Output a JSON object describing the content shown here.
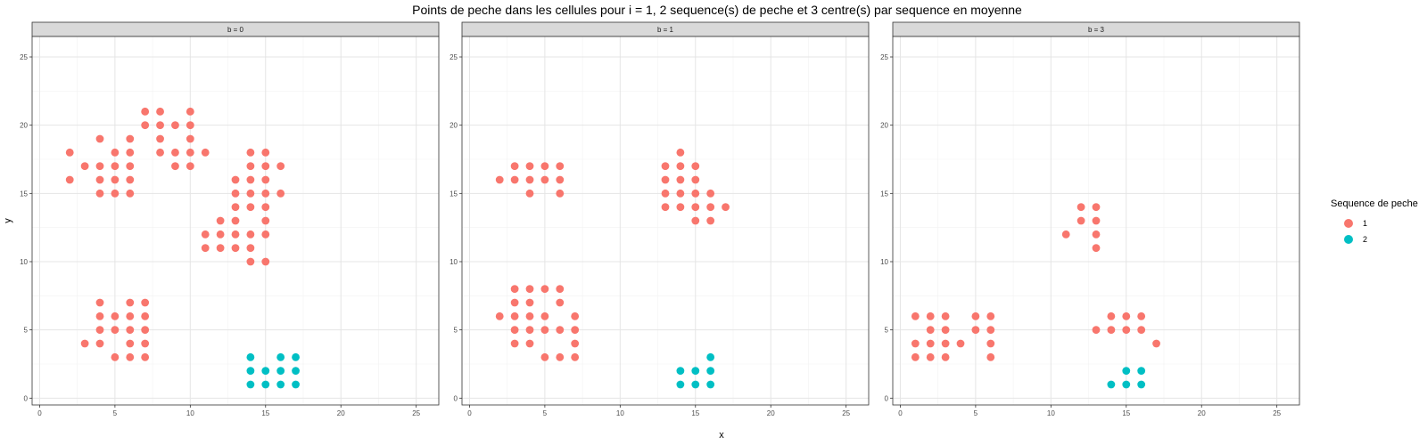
{
  "chart_data": {
    "type": "scatter",
    "title": "Points de peche dans les cellules pour i = 1, 2 sequence(s) de peche et 3 centre(s) par sequence en moyenne",
    "xlabel": "x",
    "ylabel": "y",
    "xlim": [
      -0.5,
      26.5
    ],
    "ylim": [
      -0.5,
      26.5
    ],
    "ticks": [
      "0",
      "5",
      "10",
      "15",
      "20",
      "25"
    ],
    "grid": true,
    "legend": {
      "title": "Sequence de peche",
      "placement": "right",
      "entries": [
        {
          "label": "1",
          "color": "#F8766D"
        },
        {
          "label": "2",
          "color": "#00BFC4"
        }
      ]
    },
    "panels": [
      {
        "strip": "b = 0",
        "series": [
          {
            "key": "1",
            "points": [
              [
                2,
                18
              ],
              [
                2,
                16
              ],
              [
                3,
                17
              ],
              [
                4,
                19
              ],
              [
                4,
                17
              ],
              [
                4,
                16
              ],
              [
                4,
                15
              ],
              [
                5,
                18
              ],
              [
                5,
                17
              ],
              [
                5,
                16
              ],
              [
                5,
                15
              ],
              [
                6,
                19
              ],
              [
                6,
                18
              ],
              [
                6,
                17
              ],
              [
                6,
                16
              ],
              [
                6,
                15
              ],
              [
                7,
                21
              ],
              [
                7,
                20
              ],
              [
                8,
                21
              ],
              [
                8,
                20
              ],
              [
                8,
                19
              ],
              [
                8,
                18
              ],
              [
                9,
                20
              ],
              [
                9,
                18
              ],
              [
                9,
                17
              ],
              [
                10,
                21
              ],
              [
                10,
                20
              ],
              [
                10,
                19
              ],
              [
                10,
                18
              ],
              [
                10,
                17
              ],
              [
                11,
                18
              ],
              [
                11,
                12
              ],
              [
                11,
                11
              ],
              [
                12,
                13
              ],
              [
                12,
                12
              ],
              [
                12,
                11
              ],
              [
                13,
                16
              ],
              [
                13,
                15
              ],
              [
                13,
                14
              ],
              [
                13,
                13
              ],
              [
                13,
                12
              ],
              [
                13,
                11
              ],
              [
                14,
                18
              ],
              [
                14,
                17
              ],
              [
                14,
                16
              ],
              [
                14,
                15
              ],
              [
                14,
                14
              ],
              [
                14,
                12
              ],
              [
                14,
                11
              ],
              [
                14,
                10
              ],
              [
                15,
                18
              ],
              [
                15,
                17
              ],
              [
                15,
                16
              ],
              [
                15,
                15
              ],
              [
                15,
                14
              ],
              [
                15,
                13
              ],
              [
                15,
                12
              ],
              [
                15,
                10
              ],
              [
                16,
                17
              ],
              [
                16,
                15
              ],
              [
                3,
                4
              ],
              [
                4,
                7
              ],
              [
                4,
                6
              ],
              [
                4,
                5
              ],
              [
                4,
                4
              ],
              [
                5,
                6
              ],
              [
                5,
                5
              ],
              [
                5,
                3
              ],
              [
                6,
                7
              ],
              [
                6,
                6
              ],
              [
                6,
                5
              ],
              [
                6,
                4
              ],
              [
                6,
                3
              ],
              [
                7,
                7
              ],
              [
                7,
                6
              ],
              [
                7,
                5
              ],
              [
                7,
                4
              ],
              [
                7,
                3
              ]
            ]
          },
          {
            "key": "2",
            "points": [
              [
                14,
                3
              ],
              [
                14,
                2
              ],
              [
                14,
                1
              ],
              [
                15,
                2
              ],
              [
                15,
                1
              ],
              [
                16,
                3
              ],
              [
                16,
                2
              ],
              [
                16,
                1
              ],
              [
                17,
                3
              ],
              [
                17,
                2
              ],
              [
                17,
                1
              ]
            ]
          }
        ]
      },
      {
        "strip": "b = 1",
        "series": [
          {
            "key": "1",
            "points": [
              [
                2,
                16
              ],
              [
                3,
                17
              ],
              [
                3,
                16
              ],
              [
                4,
                17
              ],
              [
                4,
                16
              ],
              [
                4,
                15
              ],
              [
                5,
                17
              ],
              [
                5,
                16
              ],
              [
                6,
                17
              ],
              [
                6,
                16
              ],
              [
                6,
                15
              ],
              [
                13,
                17
              ],
              [
                13,
                16
              ],
              [
                13,
                15
              ],
              [
                13,
                14
              ],
              [
                14,
                18
              ],
              [
                14,
                17
              ],
              [
                14,
                16
              ],
              [
                14,
                15
              ],
              [
                14,
                14
              ],
              [
                15,
                17
              ],
              [
                15,
                16
              ],
              [
                15,
                15
              ],
              [
                15,
                14
              ],
              [
                15,
                13
              ],
              [
                16,
                15
              ],
              [
                16,
                14
              ],
              [
                16,
                13
              ],
              [
                17,
                14
              ],
              [
                2,
                6
              ],
              [
                3,
                8
              ],
              [
                3,
                7
              ],
              [
                3,
                6
              ],
              [
                3,
                5
              ],
              [
                3,
                4
              ],
              [
                4,
                8
              ],
              [
                4,
                7
              ],
              [
                4,
                6
              ],
              [
                4,
                5
              ],
              [
                4,
                4
              ],
              [
                5,
                8
              ],
              [
                5,
                6
              ],
              [
                5,
                5
              ],
              [
                5,
                3
              ],
              [
                6,
                8
              ],
              [
                6,
                7
              ],
              [
                6,
                5
              ],
              [
                6,
                3
              ],
              [
                7,
                6
              ],
              [
                7,
                5
              ],
              [
                7,
                4
              ],
              [
                7,
                3
              ]
            ]
          },
          {
            "key": "2",
            "points": [
              [
                14,
                2
              ],
              [
                14,
                1
              ],
              [
                15,
                2
              ],
              [
                15,
                1
              ],
              [
                16,
                3
              ],
              [
                16,
                2
              ],
              [
                16,
                1
              ]
            ]
          }
        ]
      },
      {
        "strip": "b = 3",
        "series": [
          {
            "key": "1",
            "points": [
              [
                1,
                6
              ],
              [
                1,
                4
              ],
              [
                1,
                3
              ],
              [
                2,
                6
              ],
              [
                2,
                5
              ],
              [
                2,
                4
              ],
              [
                2,
                3
              ],
              [
                3,
                6
              ],
              [
                3,
                5
              ],
              [
                3,
                4
              ],
              [
                3,
                3
              ],
              [
                4,
                4
              ],
              [
                5,
                6
              ],
              [
                5,
                5
              ],
              [
                6,
                6
              ],
              [
                6,
                5
              ],
              [
                6,
                4
              ],
              [
                6,
                3
              ],
              [
                11,
                12
              ],
              [
                12,
                14
              ],
              [
                12,
                13
              ],
              [
                13,
                14
              ],
              [
                13,
                13
              ],
              [
                13,
                12
              ],
              [
                13,
                11
              ],
              [
                13,
                5
              ],
              [
                14,
                6
              ],
              [
                14,
                5
              ],
              [
                15,
                6
              ],
              [
                15,
                5
              ],
              [
                16,
                6
              ],
              [
                16,
                5
              ],
              [
                17,
                4
              ]
            ]
          },
          {
            "key": "2",
            "points": [
              [
                14,
                1
              ],
              [
                15,
                2
              ],
              [
                15,
                1
              ],
              [
                16,
                2
              ],
              [
                16,
                1
              ]
            ]
          }
        ]
      }
    ]
  }
}
